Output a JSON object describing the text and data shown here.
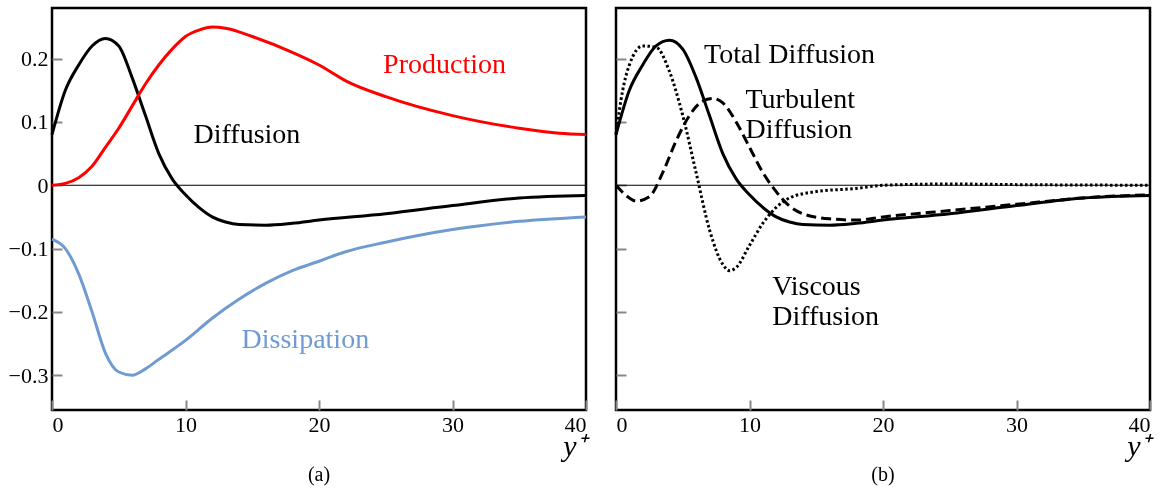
{
  "chart_data": [
    {
      "type": "line",
      "title": "(a)",
      "xlabel": "y⁺",
      "xlim": [
        0,
        40
      ],
      "xticks": [
        0,
        10,
        20,
        30,
        40
      ],
      "ylim": [
        -0.355,
        0.28
      ],
      "yticks": [
        -0.3,
        -0.2,
        -0.1,
        0,
        0.1,
        0.2
      ],
      "grid": false,
      "ref_lines": [
        {
          "axis": "y",
          "value": 0,
          "color": "#000000"
        }
      ],
      "series": [
        {
          "name": "Diffusion",
          "color": "#000000",
          "line_style": "solid",
          "x": [
            0,
            1,
            2,
            3,
            4,
            5,
            6,
            7,
            8,
            9,
            10,
            11,
            12,
            13,
            14,
            16,
            18,
            20,
            25,
            30,
            35,
            40
          ],
          "values": [
            0.08,
            0.15,
            0.19,
            0.22,
            0.232,
            0.22,
            0.17,
            0.11,
            0.05,
            0.01,
            -0.015,
            -0.035,
            -0.05,
            -0.058,
            -0.062,
            -0.063,
            -0.06,
            -0.055,
            -0.045,
            -0.032,
            -0.02,
            -0.016
          ]
        },
        {
          "name": "Production",
          "color": "#ff0000",
          "line_style": "solid",
          "x": [
            0,
            1,
            2,
            3,
            4,
            5,
            6,
            7,
            8,
            9,
            10,
            11,
            12,
            13,
            15,
            18,
            20,
            22,
            25,
            30,
            35,
            38,
            40
          ],
          "values": [
            0,
            0.003,
            0.012,
            0.03,
            0.06,
            0.09,
            0.125,
            0.16,
            0.19,
            0.215,
            0.235,
            0.245,
            0.25,
            0.248,
            0.235,
            0.21,
            0.19,
            0.165,
            0.14,
            0.11,
            0.09,
            0.082,
            0.08
          ]
        },
        {
          "name": "Dissipation",
          "color": "#6f9bd1",
          "line_style": "solid",
          "x": [
            0,
            1,
            2,
            3,
            4,
            5,
            6,
            7,
            8,
            10,
            12,
            14,
            16,
            18,
            20,
            22,
            25,
            30,
            35,
            40
          ],
          "values": [
            -0.085,
            -0.1,
            -0.14,
            -0.2,
            -0.265,
            -0.295,
            -0.3,
            -0.29,
            -0.275,
            -0.245,
            -0.21,
            -0.18,
            -0.155,
            -0.135,
            -0.12,
            -0.105,
            -0.09,
            -0.07,
            -0.057,
            -0.05
          ]
        }
      ]
    },
    {
      "type": "line",
      "title": "(b)",
      "xlabel": "y⁺",
      "xlim": [
        0,
        40
      ],
      "xticks": [
        0,
        10,
        20,
        30,
        40
      ],
      "ylim": [
        -0.355,
        0.28
      ],
      "yticks": [
        -0.3,
        -0.2,
        -0.1,
        0,
        0.1,
        0.2
      ],
      "tick_labels": "x",
      "grid": false,
      "ref_lines": [
        {
          "axis": "y",
          "value": 0,
          "color": "#000000"
        }
      ],
      "series": [
        {
          "name": "Total Diffusion",
          "color": "#000000",
          "line_style": "solid",
          "x": [
            0,
            1,
            2,
            3,
            4,
            5,
            6,
            7,
            8,
            9,
            10,
            11,
            12,
            13,
            14,
            16,
            18,
            20,
            25,
            30,
            35,
            40
          ],
          "values": [
            0.08,
            0.15,
            0.19,
            0.22,
            0.229,
            0.215,
            0.17,
            0.11,
            0.05,
            0.01,
            -0.015,
            -0.035,
            -0.05,
            -0.058,
            -0.062,
            -0.063,
            -0.06,
            -0.055,
            -0.045,
            -0.032,
            -0.02,
            -0.016
          ]
        },
        {
          "name": "Turbulent\nDiffusion",
          "color": "#000000",
          "line_style": "dashed",
          "x": [
            0,
            1,
            1.5,
            2.5,
            3.5,
            4.5,
            5.5,
            6.5,
            7.3,
            8,
            9,
            10,
            11,
            12,
            13,
            14,
            16,
            18,
            20,
            25,
            30,
            35,
            40
          ],
          "values": [
            0,
            -0.02,
            -0.025,
            -0.018,
            0.02,
            0.07,
            0.11,
            0.133,
            0.137,
            0.13,
            0.1,
            0.06,
            0.02,
            -0.01,
            -0.033,
            -0.045,
            -0.053,
            -0.055,
            -0.05,
            -0.04,
            -0.03,
            -0.02,
            -0.015
          ]
        },
        {
          "name": "Viscous\nDiffusion",
          "color": "#000000",
          "line_style": "dotted",
          "x": [
            0,
            0.5,
            1,
            2,
            3,
            4,
            5,
            6,
            7,
            8,
            8.5,
            9,
            10,
            11,
            12,
            13,
            15,
            18,
            20,
            25,
            30,
            40
          ],
          "values": [
            0.08,
            0.15,
            0.19,
            0.22,
            0.218,
            0.18,
            0.11,
            0.02,
            -0.07,
            -0.125,
            -0.135,
            -0.13,
            -0.095,
            -0.06,
            -0.035,
            -0.02,
            -0.01,
            -0.005,
            0,
            0.002,
            0.001,
            0
          ]
        }
      ]
    }
  ]
}
